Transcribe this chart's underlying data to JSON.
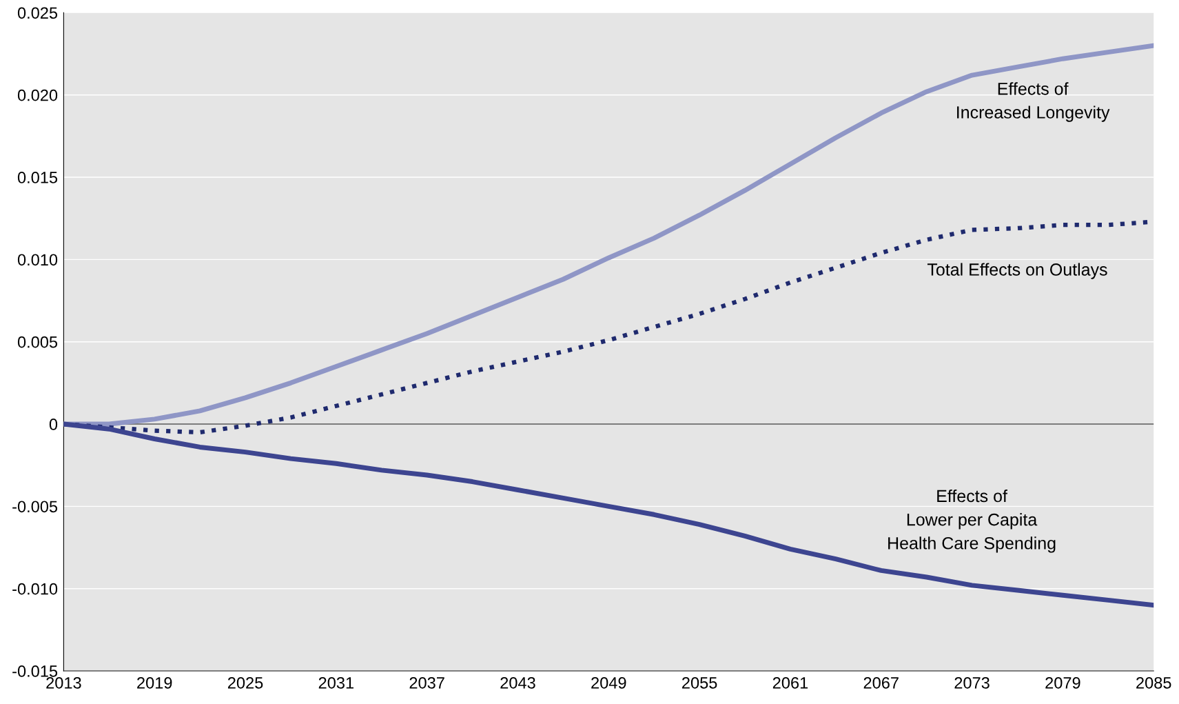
{
  "chart_data": {
    "type": "line",
    "x": [
      2013,
      2016,
      2019,
      2022,
      2025,
      2028,
      2031,
      2034,
      2037,
      2040,
      2043,
      2046,
      2049,
      2052,
      2055,
      2058,
      2061,
      2064,
      2067,
      2070,
      2073,
      2076,
      2079,
      2082,
      2085
    ],
    "series": [
      {
        "name": "Effects of\nIncreased Longevity",
        "color": "#8f96c6",
        "line_style": "solid",
        "values": [
          0,
          0.0,
          0.0003,
          0.0008,
          0.0016,
          0.0025,
          0.0035,
          0.0045,
          0.0055,
          0.0066,
          0.0077,
          0.0088,
          0.0101,
          0.0113,
          0.0127,
          0.0142,
          0.0158,
          0.0174,
          0.0189,
          0.0202,
          0.0212,
          0.0217,
          0.0222,
          0.0226,
          0.023
        ]
      },
      {
        "name": "Total Effects on Outlays",
        "color": "#1f2a6e",
        "line_style": "dotted",
        "values": [
          0,
          -0.0002,
          -0.0004,
          -0.0005,
          -0.0001,
          0.0004,
          0.0011,
          0.0018,
          0.0025,
          0.0032,
          0.0038,
          0.0044,
          0.0051,
          0.0059,
          0.0067,
          0.0076,
          0.0086,
          0.0095,
          0.0104,
          0.0112,
          0.0118,
          0.0119,
          0.0121,
          0.0121,
          0.0123
        ]
      },
      {
        "name": "Effects of\nLower per Capita\nHealth Care Spending",
        "color": "#3d4590",
        "line_style": "solid",
        "values": [
          0,
          -0.0003,
          -0.0009,
          -0.0014,
          -0.0017,
          -0.0021,
          -0.0024,
          -0.0028,
          -0.0031,
          -0.0035,
          -0.004,
          -0.0045,
          -0.005,
          -0.0055,
          -0.0061,
          -0.0068,
          -0.0076,
          -0.0082,
          -0.0089,
          -0.0093,
          -0.0098,
          -0.0101,
          -0.0104,
          -0.0107,
          -0.011
        ]
      }
    ],
    "xlim": [
      2013,
      2085
    ],
    "xticks": [
      2013,
      2019,
      2025,
      2031,
      2037,
      2043,
      2049,
      2055,
      2061,
      2067,
      2073,
      2079,
      2085
    ],
    "ylim": [
      -0.015,
      0.025
    ],
    "yticks": [
      -0.015,
      {
        "value": -0.01,
        "label": "-0.010"
      },
      -0.005,
      0,
      0.005,
      {
        "value": 0.01,
        "label": "0.010"
      },
      0.015,
      {
        "value": 0.02,
        "label": "0.020"
      },
      0.025
    ],
    "grid": "y",
    "ref_lines": [
      {
        "axis": "y",
        "value": 0,
        "color": "#000000"
      }
    ]
  }
}
